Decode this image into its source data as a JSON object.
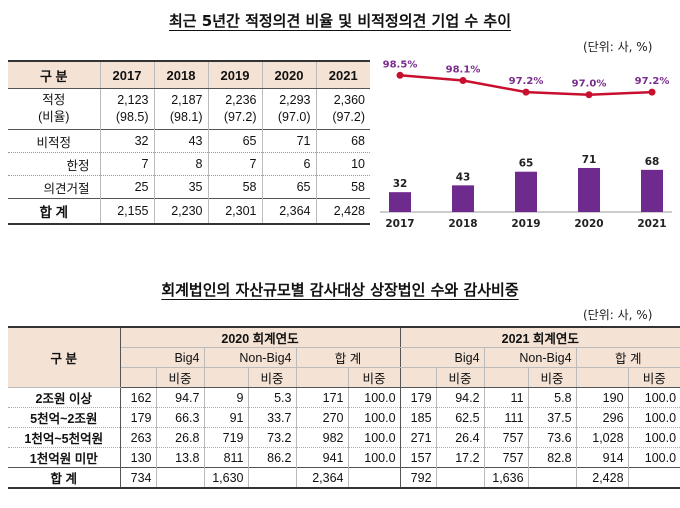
{
  "section1": {
    "title": "최근 5년간 적정의견 비율 및 비적정의견 기업 수 추이",
    "unit": "(단위: 사, %)",
    "table": {
      "header": [
        "구 분",
        "2017",
        "2018",
        "2019",
        "2020",
        "2021"
      ],
      "rows": [
        {
          "label": "적정",
          "label2": "(비율)",
          "values": [
            "2,123",
            "2,187",
            "2,236",
            "2,293",
            "2,360"
          ],
          "values2": [
            "(98.5)",
            "(98.1)",
            "(97.2)",
            "(97.0)",
            "(97.2)"
          ]
        },
        {
          "label": "비적정",
          "values": [
            "32",
            "43",
            "65",
            "71",
            "68"
          ]
        },
        {
          "label": "한정",
          "values": [
            "7",
            "8",
            "7",
            "6",
            "10"
          ]
        },
        {
          "label": "의견거절",
          "values": [
            "25",
            "35",
            "58",
            "65",
            "58"
          ]
        },
        {
          "label": "합 계",
          "values": [
            "2,155",
            "2,230",
            "2,301",
            "2,364",
            "2,428"
          ]
        }
      ]
    }
  },
  "chart_data": {
    "type": "bar",
    "categories": [
      "2017",
      "2018",
      "2019",
      "2020",
      "2021"
    ],
    "series": [
      {
        "values": [
          32,
          43,
          65,
          71,
          68
        ],
        "kind": "bar",
        "labels": [
          "32",
          "43",
          "65",
          "71",
          "68"
        ]
      },
      {
        "values": [
          98.5,
          98.1,
          97.2,
          97.0,
          97.2
        ],
        "kind": "line",
        "labels": [
          "98.5%",
          "98.1%",
          "97.2%",
          "97.0%",
          "97.2%"
        ]
      }
    ],
    "colors": {
      "bar": "#6f2a8e",
      "line": "#c8102e"
    },
    "grid": false
  },
  "section2": {
    "title": "회계법인의 자산규모별 감사대상 상장법인 수와 감사비중",
    "unit": "(단위: 사, %)",
    "header": {
      "rowlabel": "구 분",
      "years": [
        "2020 회계연도",
        "2021 회계연도"
      ],
      "groups": [
        "Big4",
        "Non-Big4",
        "합 계"
      ],
      "share": "비중"
    },
    "rows": [
      {
        "label": "2조원 이상",
        "v": [
          "162",
          "94.7",
          "9",
          "5.3",
          "171",
          "100.0",
          "179",
          "94.2",
          "11",
          "5.8",
          "190",
          "100.0"
        ]
      },
      {
        "label": "5천억~2조원",
        "v": [
          "179",
          "66.3",
          "91",
          "33.7",
          "270",
          "100.0",
          "185",
          "62.5",
          "111",
          "37.5",
          "296",
          "100.0"
        ]
      },
      {
        "label": "1천억~5천억원",
        "v": [
          "263",
          "26.8",
          "719",
          "73.2",
          "982",
          "100.0",
          "271",
          "26.4",
          "757",
          "73.6",
          "1,028",
          "100.0"
        ]
      },
      {
        "label": "1천억원 미만",
        "v": [
          "130",
          "13.8",
          "811",
          "86.2",
          "941",
          "100.0",
          "157",
          "17.2",
          "757",
          "82.8",
          "914",
          "100.0"
        ]
      },
      {
        "label": "합 계",
        "v": [
          "734",
          "",
          "1,630",
          "",
          "2,364",
          "",
          "792",
          "",
          "1,636",
          "",
          "2,428",
          ""
        ]
      }
    ]
  }
}
